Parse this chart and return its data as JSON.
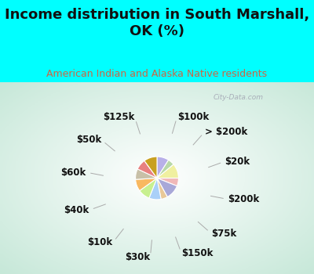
{
  "title": "Income distribution in South Marshall,\nOK (%)",
  "subtitle": "American Indian and Alaska Native residents",
  "bg_cyan": "#00FFFF",
  "bg_chart_color": "#d4ede4",
  "title_color": "#111111",
  "subtitle_color": "#cc6644",
  "watermark": "City-Data.com",
  "labels": [
    "$100k",
    "> $200k",
    "$20k",
    "$200k",
    "$75k",
    "$150k",
    "$30k",
    "$10k",
    "$40k",
    "$60k",
    "$50k",
    "$125k"
  ],
  "values": [
    9,
    5,
    11,
    6,
    11,
    5,
    9,
    9,
    9,
    8,
    8,
    10
  ],
  "colors": [
    "#b8b0e8",
    "#b8d8a8",
    "#f0f0a0",
    "#f0b8b8",
    "#a8a8d8",
    "#e8c898",
    "#aad0f8",
    "#c8f090",
    "#f8b860",
    "#c8c0a8",
    "#e88080",
    "#c8a020"
  ],
  "label_fontsize": 8.5,
  "startangle": 90,
  "title_fontsize": 13,
  "subtitle_fontsize": 9
}
